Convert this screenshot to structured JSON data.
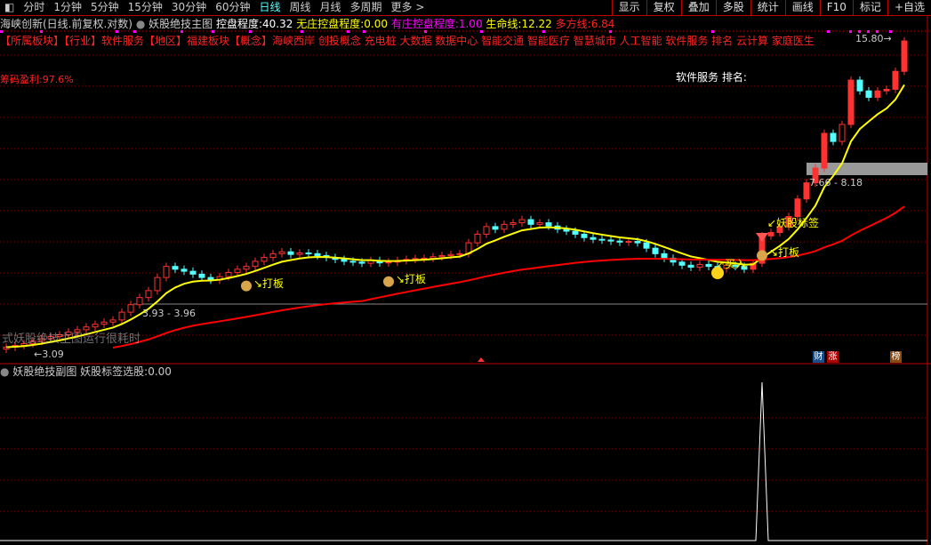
{
  "toolbar": {
    "items": [
      "分时",
      "1分钟",
      "5分钟",
      "15分钟",
      "30分钟",
      "60分钟",
      "日线",
      "周线",
      "月线",
      "多周期",
      "更多 >"
    ],
    "active": "日线",
    "right": [
      "显示",
      "复权",
      "叠加",
      "多股",
      "统计",
      "画线",
      "F10",
      "标记",
      "+自选"
    ]
  },
  "info": {
    "stock": "海峡创新(日线.前复权.对数)",
    "indicator": "妖股绝技主图",
    "kp_label": "控盘程度:",
    "kp_value": "40.32",
    "wz_label": "无庄控盘程度:",
    "wz_value": "0.00",
    "yz_label": "有庄控盘程度:",
    "yz_value": "1.00",
    "smx_label": "生命线:",
    "smx_value": "12.22",
    "dfx_label": "多方线:",
    "dfx_value": "6.84"
  },
  "concepts": "【所属板块】【行业】软件服务【地区】福建板块【概念】海峡西岸 创投概念 充电桩 大数据 数据中心 智能交通 智能医疗 智慧城市 人工智能 软件服务 排名 云计算 家庭医生",
  "overlay_rank": "软件服务 排名:",
  "profit": "筹码盈利:97.6%",
  "watermark": "式妖股绝技主图运行很耗时",
  "annotations": {
    "high": "15.80",
    "low": "3.09",
    "range1": "3.93 - 3.96",
    "range2": "7.66 - 8.18",
    "daban": "打板",
    "buy": "买入",
    "yaogu": "妖股标签"
  },
  "badges": [
    "财",
    "涨",
    "榜"
  ],
  "sub": {
    "title": "妖股绝技副图",
    "label": "妖股标签选股:",
    "value": "0.00"
  },
  "colors": {
    "up": "#ff3232",
    "down": "#54ffff",
    "life_line": "#ffff00",
    "bull_line": "#ff0000",
    "magenta": "#ff00ff"
  },
  "chart_data": {
    "type": "candlestick",
    "scale": "log",
    "closes": [
      3.12,
      3.15,
      3.18,
      3.22,
      3.26,
      3.3,
      3.33,
      3.38,
      3.42,
      3.47,
      3.52,
      3.56,
      3.6,
      3.75,
      3.9,
      4.05,
      4.2,
      4.5,
      4.77,
      4.7,
      4.65,
      4.58,
      4.5,
      4.44,
      4.52,
      4.62,
      4.7,
      4.77,
      4.9,
      5.0,
      5.1,
      5.15,
      5.08,
      5.12,
      5.1,
      5.05,
      5.0,
      4.95,
      4.9,
      4.88,
      4.85,
      4.92,
      4.86,
      4.88,
      4.92,
      4.95,
      4.97,
      4.98,
      5.02,
      5.05,
      5.08,
      5.1,
      5.4,
      5.65,
      5.88,
      5.8,
      5.95,
      6.0,
      6.1,
      5.95,
      6.0,
      5.9,
      5.8,
      5.74,
      5.65,
      5.55,
      5.5,
      5.48,
      5.45,
      5.42,
      5.44,
      5.4,
      5.25,
      5.1,
      4.98,
      4.88,
      4.8,
      4.75,
      4.82,
      4.77,
      4.72,
      4.8,
      4.77,
      4.7,
      4.85,
      5.6,
      5.7,
      5.88,
      6.2,
      6.8,
      7.4,
      8.0,
      9.6,
      9.2,
      10.06,
      12.7,
      12.0,
      11.6,
      12.0,
      12.1,
      13.3,
      15.6
    ],
    "daban_bars": [
      27,
      43,
      85
    ],
    "buy_bar": 79,
    "yaogu_bar": 85,
    "sub_signal_bar": 85
  }
}
